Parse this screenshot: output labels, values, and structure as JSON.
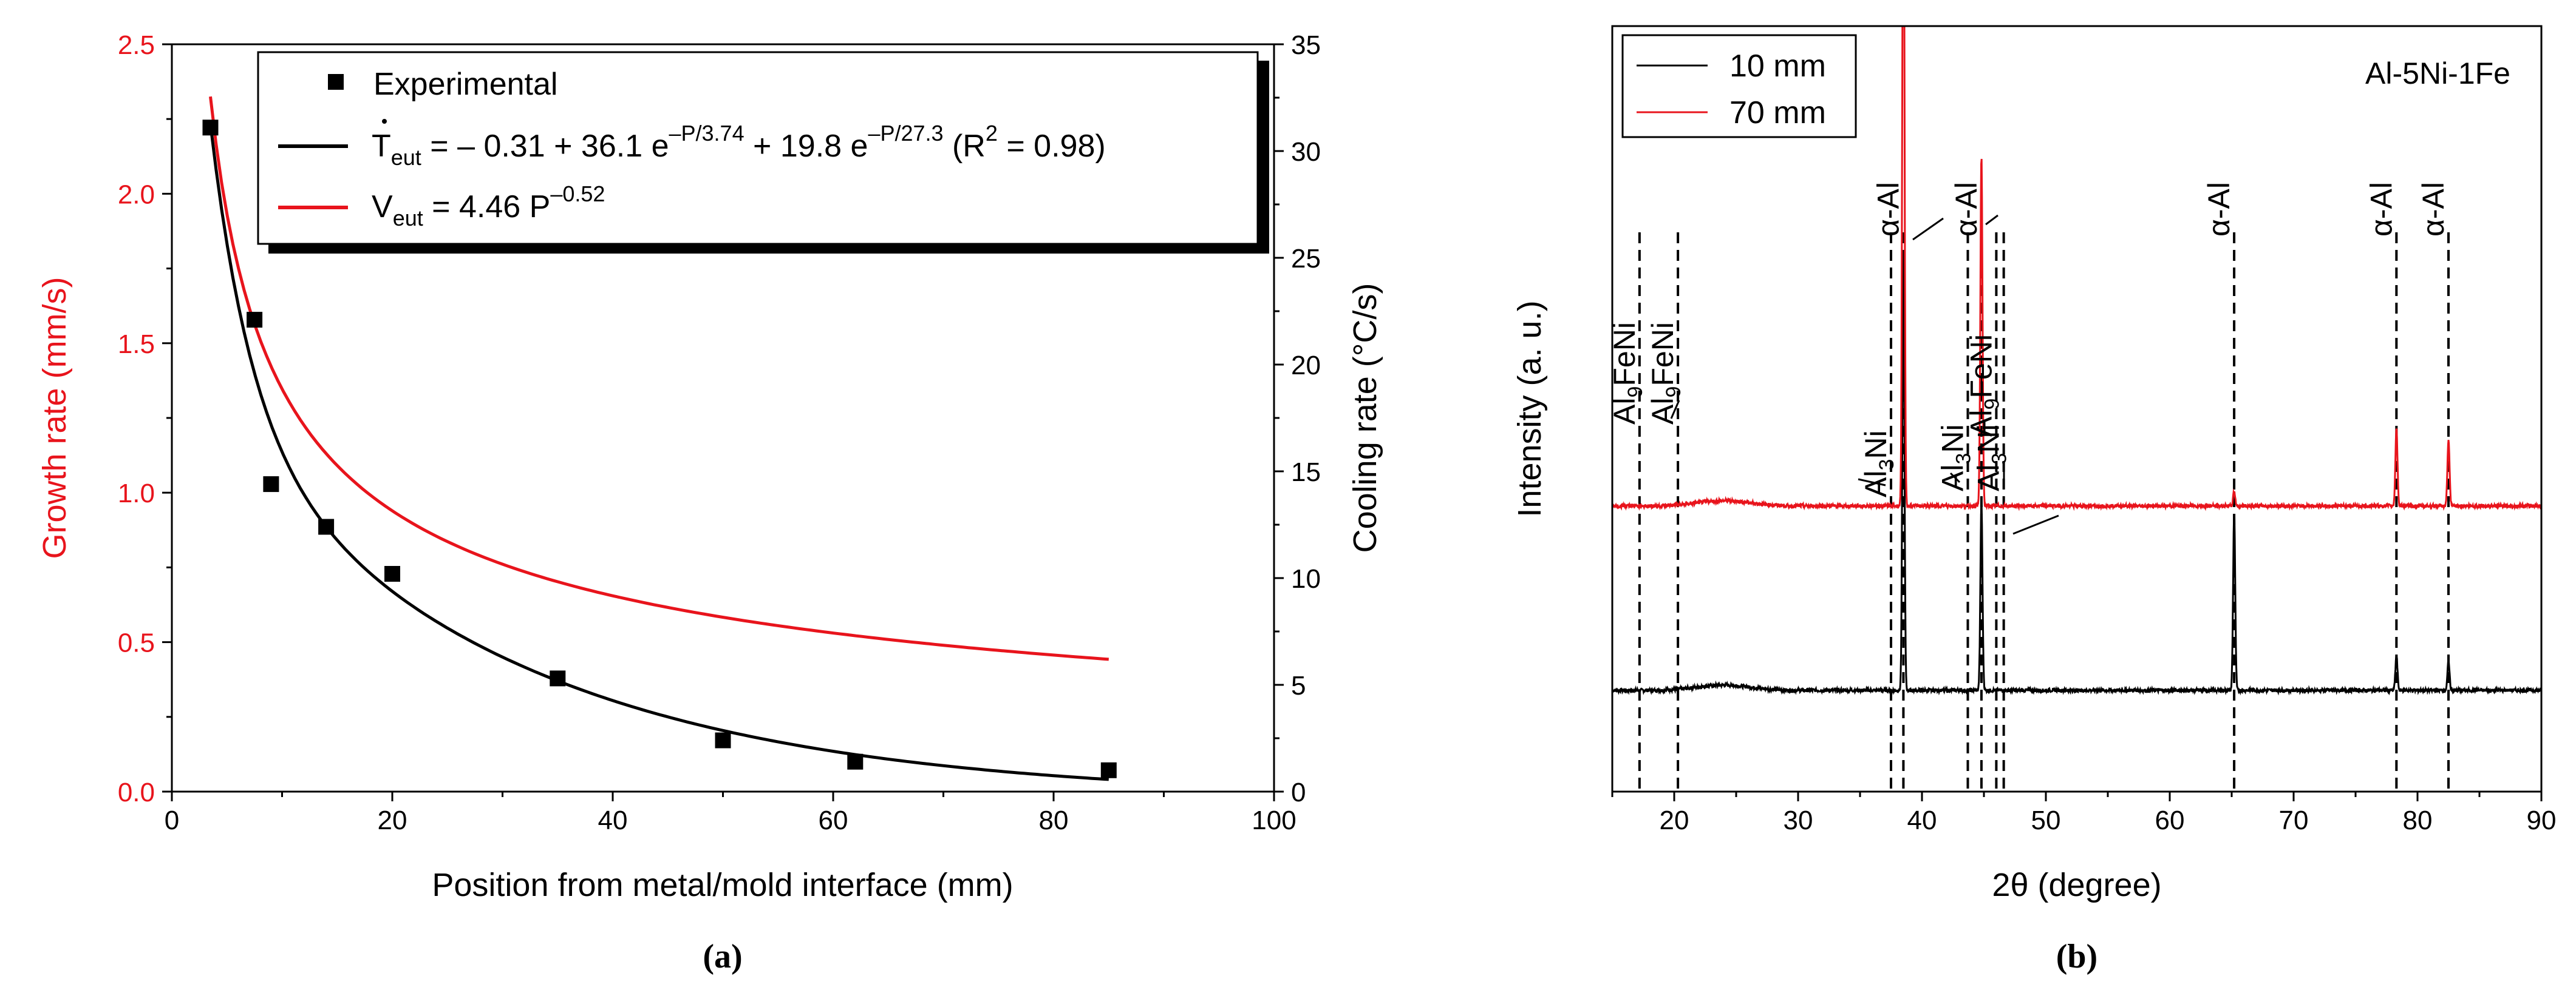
{
  "chart_data": [
    {
      "id": "panel-a",
      "type": "line",
      "caption": "(a)",
      "title": "",
      "xlabel": "Position from metal/mold interface (mm)",
      "ylabel_left": "Growth rate (mm/s)",
      "ylabel_right": "Cooling rate (°C/s)",
      "xlim": [
        0,
        100
      ],
      "ylim_left": [
        0,
        2.5
      ],
      "ylim_right": [
        0,
        35
      ],
      "x_ticks": [
        "0",
        "20",
        "40",
        "60",
        "80",
        "100"
      ],
      "y_left_ticks": [
        "0.0",
        "0.5",
        "1.0",
        "1.5",
        "2.0",
        "2.5"
      ],
      "y_right_ticks": [
        "0",
        "5",
        "10",
        "15",
        "20",
        "25",
        "30",
        "35"
      ],
      "grid": false,
      "legend_position": "top-right",
      "colors": {
        "growth": "#e8141c",
        "cooling": "#000000"
      },
      "legend": {
        "experimental": "Experimental",
        "cooling_fit": {
          "T": "T",
          "sub": "eut",
          "eq": " = – 0.31 + 36.1 e",
          "sup1": "–P/3.74",
          "mid": " + 19.8 e",
          "sup2": "–P/27.3",
          "tail": " (R",
          "sup3": "2",
          "end": " = 0.98)"
        },
        "growth_fit": {
          "V": "V",
          "sub": "eut",
          "eq": " = 4.46 P",
          "sup": "–0.52"
        }
      },
      "series": [
        {
          "name": "Experimental",
          "axis": "right",
          "kind": "scatter",
          "x": [
            3.5,
            7.5,
            9,
            14,
            20,
            35,
            50,
            62,
            85
          ],
          "y": [
            31.1,
            22.1,
            14.4,
            12.4,
            10.2,
            5.3,
            2.4,
            1.4,
            1.0
          ]
        },
        {
          "name": "T_eut fit",
          "axis": "right",
          "kind": "line",
          "model": "-0.31 + 36.1*exp(-P/3.74) + 19.8*exp(-P/27.3)",
          "x_range": [
            3.5,
            85
          ]
        },
        {
          "name": "V_eut fit",
          "axis": "left",
          "kind": "line",
          "model": "4.46*P^-0.52",
          "x_range": [
            3.5,
            85
          ]
        }
      ]
    },
    {
      "id": "panel-b",
      "type": "line",
      "caption": "(b)",
      "xlabel": "2θ (degree)",
      "ylabel": "Intensity (a. u.)",
      "xlim": [
        15,
        90
      ],
      "x_ticks": [
        "20",
        "30",
        "40",
        "50",
        "60",
        "70",
        "80",
        "90"
      ],
      "y_ticks": [],
      "grid": false,
      "title_annotation": "Al-5Ni-1Fe",
      "legend_position": "top-left",
      "series": [
        {
          "name": "10 mm",
          "color": "#000000",
          "baseline": 0.0,
          "peaks": [
            {
              "x": 38.5,
              "h": 1.5
            },
            {
              "x": 44.8,
              "h": 0.65
            },
            {
              "x": 65.2,
              "h": 0.62
            },
            {
              "x": 78.3,
              "h": 0.12
            },
            {
              "x": 82.5,
              "h": 0.1
            }
          ]
        },
        {
          "name": "70 mm",
          "color": "#e8141c",
          "baseline": 0.64,
          "peaks": [
            {
              "x": 38.5,
              "h": 2.6
            },
            {
              "x": 44.8,
              "h": 1.22
            },
            {
              "x": 65.2,
              "h": 0.05
            },
            {
              "x": 78.3,
              "h": 0.27
            },
            {
              "x": 82.5,
              "h": 0.23
            }
          ]
        }
      ],
      "phase_labels": [
        {
          "pre": "Al",
          "sub": "9",
          "post": "FeNi",
          "x": 17.2
        },
        {
          "pre": "Al",
          "sub": "9",
          "post": "FeNi",
          "x": 20.3
        },
        {
          "pre": "Al",
          "sub": "3",
          "post": "Ni",
          "x": 37.5
        },
        {
          "pre": "α-Al",
          "sub": "",
          "post": "",
          "x": 38.5
        },
        {
          "pre": "Al",
          "sub": "3",
          "post": "Ni",
          "x": 43.7
        },
        {
          "pre": "α-Al",
          "sub": "",
          "post": "",
          "x": 44.8
        },
        {
          "pre": "Al",
          "sub": "9",
          "post": "FeNi",
          "x": 46.0
        },
        {
          "pre": "Al",
          "sub": "3",
          "post": "Ni",
          "x": 46.6
        },
        {
          "pre": "α-Al",
          "sub": "",
          "post": "",
          "x": 65.2
        },
        {
          "pre": "α-Al",
          "sub": "",
          "post": "",
          "x": 78.3
        },
        {
          "pre": "α-Al",
          "sub": "",
          "post": "",
          "x": 82.5
        }
      ]
    }
  ]
}
